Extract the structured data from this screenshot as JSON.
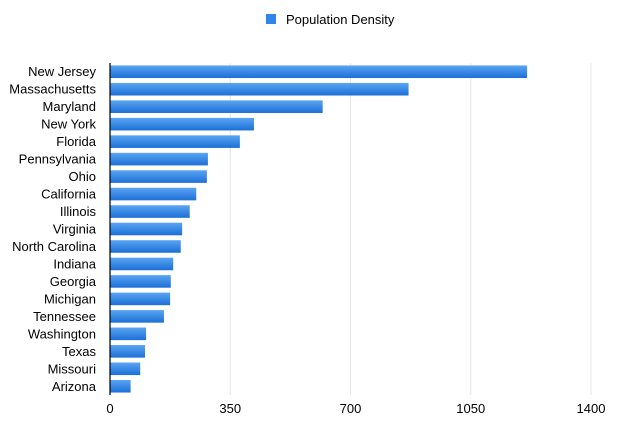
{
  "chart_data": {
    "type": "bar",
    "orientation": "horizontal",
    "categories": [
      "New Jersey",
      "Massachusetts",
      "Maryland",
      "New York",
      "Florida",
      "Pennsylvania",
      "Ohio",
      "California",
      "Illinois",
      "Virginia",
      "North Carolina",
      "Indiana",
      "Georgia",
      "Michigan",
      "Tennessee",
      "Washington",
      "Texas",
      "Missouri",
      "Arizona"
    ],
    "series": [
      {
        "name": "Population Density",
        "values": [
          1214,
          869,
          619,
          419,
          378,
          285,
          282,
          251,
          232,
          210,
          206,
          184,
          177,
          175,
          157,
          105,
          102,
          88,
          60
        ]
      }
    ],
    "title": "",
    "xlabel": "",
    "ylabel": "",
    "xlim": [
      0,
      1400
    ],
    "xticks": [
      0,
      350,
      700,
      1050,
      1400
    ],
    "grid": true,
    "legend_position": "top-center",
    "colors": {
      "bar": "#2f86e8",
      "bar_light": "#5aa5f3",
      "bar_dark": "#1c6fd6",
      "grid": "#e6e6e6",
      "axis": "#000000"
    }
  }
}
